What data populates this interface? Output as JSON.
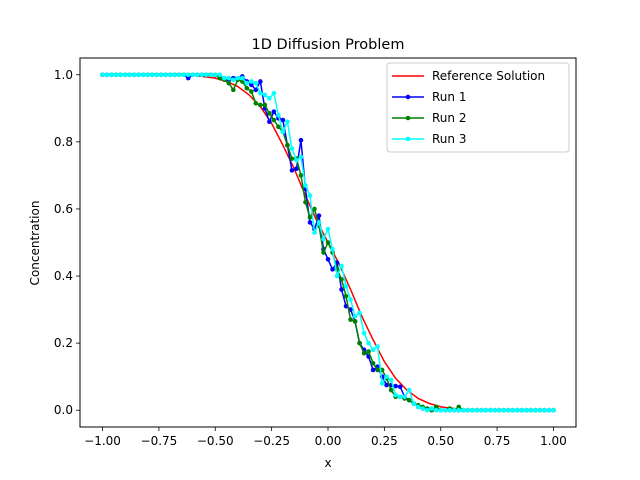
{
  "chart_data": {
    "type": "line",
    "title": "1D Diffusion Problem",
    "xlabel": "x",
    "ylabel": "Concentration",
    "xlim": [
      -1.1,
      1.1
    ],
    "ylim": [
      -0.05,
      1.05
    ],
    "xticks": [
      -1.0,
      -0.75,
      -0.5,
      -0.25,
      0.0,
      0.25,
      0.5,
      0.75,
      1.0
    ],
    "xtick_labels": [
      "−1.00",
      "−0.75",
      "−0.50",
      "−0.25",
      "0.00",
      "0.25",
      "0.50",
      "0.75",
      "1.00"
    ],
    "yticks": [
      0.0,
      0.2,
      0.4,
      0.6,
      0.8,
      1.0
    ],
    "ytick_labels": [
      "0.0",
      "0.2",
      "0.4",
      "0.6",
      "0.8",
      "1.0"
    ],
    "grid": false,
    "legend_position": "top-right",
    "reference_solution": {
      "name": "Reference Solution",
      "color": "#ff0000",
      "x": [
        -1.0,
        -0.9,
        -0.8,
        -0.7,
        -0.6,
        -0.5,
        -0.45,
        -0.4,
        -0.35,
        -0.3,
        -0.25,
        -0.2,
        -0.15,
        -0.1,
        -0.05,
        0.0,
        0.05,
        0.1,
        0.15,
        0.2,
        0.25,
        0.3,
        0.35,
        0.4,
        0.45,
        0.5,
        0.6,
        0.7,
        0.8,
        0.9,
        1.0
      ],
      "y": [
        1.0,
        1.0,
        1.0,
        1.0,
        0.999,
        0.99,
        0.98,
        0.965,
        0.94,
        0.905,
        0.855,
        0.79,
        0.72,
        0.64,
        0.565,
        0.5,
        0.435,
        0.36,
        0.28,
        0.21,
        0.145,
        0.095,
        0.06,
        0.035,
        0.02,
        0.01,
        0.002,
        0.0,
        0.0,
        0.0,
        0.0
      ]
    },
    "series": [
      {
        "name": "Run 1",
        "color": "#0000ff",
        "x": [
          -1.0,
          -0.98,
          -0.96,
          -0.94,
          -0.92,
          -0.9,
          -0.88,
          -0.86,
          -0.84,
          -0.82,
          -0.8,
          -0.78,
          -0.76,
          -0.74,
          -0.72,
          -0.7,
          -0.68,
          -0.66,
          -0.64,
          -0.62,
          -0.6,
          -0.58,
          -0.56,
          -0.54,
          -0.52,
          -0.5,
          -0.48,
          -0.46,
          -0.44,
          -0.42,
          -0.4,
          -0.38,
          -0.36,
          -0.34,
          -0.32,
          -0.3,
          -0.28,
          -0.26,
          -0.24,
          -0.22,
          -0.2,
          -0.18,
          -0.16,
          -0.14,
          -0.12,
          -0.1,
          -0.08,
          -0.06,
          -0.04,
          -0.02,
          0.0,
          0.02,
          0.04,
          0.06,
          0.08,
          0.1,
          0.12,
          0.14,
          0.16,
          0.18,
          0.2,
          0.22,
          0.24,
          0.26,
          0.28,
          0.3,
          0.32,
          0.34,
          0.36,
          0.38,
          0.4,
          0.42,
          0.44,
          0.46,
          0.48,
          0.5,
          0.52,
          0.54,
          0.56,
          0.58,
          0.6,
          0.62,
          0.64,
          0.66,
          0.68,
          0.7,
          0.72,
          0.74,
          0.76,
          0.78,
          0.8,
          0.82,
          0.84,
          0.86,
          0.88,
          0.9,
          0.92,
          0.94,
          0.96,
          0.98,
          1.0
        ],
        "y": [
          1.0,
          1.0,
          1.0,
          1.0,
          1.0,
          1.0,
          1.0,
          1.0,
          1.0,
          1.0,
          1.0,
          1.0,
          1.0,
          1.0,
          1.0,
          1.0,
          1.0,
          1.0,
          1.0,
          0.99,
          1.0,
          1.0,
          1.0,
          1.0,
          1.0,
          0.999,
          0.995,
          0.99,
          0.985,
          0.99,
          0.99,
          0.995,
          0.98,
          0.97,
          0.955,
          0.98,
          0.9,
          0.86,
          0.89,
          0.87,
          0.865,
          0.79,
          0.715,
          0.72,
          0.805,
          0.66,
          0.56,
          0.54,
          0.58,
          0.48,
          0.45,
          0.42,
          0.44,
          0.36,
          0.31,
          0.3,
          0.265,
          0.2,
          0.18,
          0.16,
          0.12,
          0.13,
          0.1,
          0.075,
          0.075,
          0.072,
          0.07,
          0.04,
          0.03,
          0.02,
          0.01,
          0.005,
          0.004,
          0.002,
          0.001,
          0.0,
          0.0,
          0.0,
          0.0,
          0.0,
          0.0,
          0.0,
          0.0,
          0.0,
          0.0,
          0.0,
          0.0,
          0.0,
          0.0,
          0.0,
          0.0,
          0.0,
          0.0,
          0.0,
          0.0,
          0.0,
          0.0,
          0.0,
          0.0,
          0.0,
          0.0
        ]
      },
      {
        "name": "Run 2",
        "color": "#008000",
        "x": [
          -1.0,
          -0.98,
          -0.96,
          -0.94,
          -0.92,
          -0.9,
          -0.88,
          -0.86,
          -0.84,
          -0.82,
          -0.8,
          -0.78,
          -0.76,
          -0.74,
          -0.72,
          -0.7,
          -0.68,
          -0.66,
          -0.64,
          -0.62,
          -0.6,
          -0.58,
          -0.56,
          -0.54,
          -0.52,
          -0.5,
          -0.48,
          -0.46,
          -0.44,
          -0.42,
          -0.4,
          -0.38,
          -0.36,
          -0.34,
          -0.32,
          -0.3,
          -0.28,
          -0.26,
          -0.24,
          -0.22,
          -0.2,
          -0.18,
          -0.16,
          -0.14,
          -0.12,
          -0.1,
          -0.08,
          -0.06,
          -0.04,
          -0.02,
          0.0,
          0.02,
          0.04,
          0.06,
          0.08,
          0.1,
          0.12,
          0.14,
          0.16,
          0.18,
          0.2,
          0.22,
          0.24,
          0.26,
          0.28,
          0.3,
          0.32,
          0.34,
          0.36,
          0.38,
          0.4,
          0.42,
          0.44,
          0.46,
          0.48,
          0.5,
          0.52,
          0.54,
          0.56,
          0.58,
          0.6,
          0.62,
          0.64,
          0.66,
          0.68,
          0.7,
          0.72,
          0.74,
          0.76,
          0.78,
          0.8,
          0.82,
          0.84,
          0.86,
          0.88,
          0.9,
          0.92,
          0.94,
          0.96,
          0.98,
          1.0
        ],
        "y": [
          1.0,
          1.0,
          1.0,
          1.0,
          1.0,
          1.0,
          1.0,
          1.0,
          1.0,
          1.0,
          1.0,
          1.0,
          1.0,
          1.0,
          1.0,
          1.0,
          1.0,
          1.0,
          1.0,
          1.0,
          1.0,
          1.0,
          1.0,
          1.0,
          1.0,
          1.0,
          0.99,
          0.985,
          0.975,
          0.955,
          0.985,
          0.98,
          0.96,
          0.95,
          0.915,
          0.91,
          0.91,
          0.885,
          0.865,
          0.845,
          0.83,
          0.79,
          0.75,
          0.75,
          0.7,
          0.62,
          0.575,
          0.6,
          0.55,
          0.47,
          0.5,
          0.47,
          0.42,
          0.39,
          0.34,
          0.27,
          0.265,
          0.2,
          0.17,
          0.175,
          0.14,
          0.12,
          0.12,
          0.095,
          0.06,
          0.04,
          0.04,
          0.035,
          0.03,
          0.02,
          0.015,
          0.01,
          0.005,
          0.0,
          0.01,
          0.0,
          0.0,
          0.005,
          0.0,
          0.01,
          0.0,
          0.0,
          0.0,
          0.0,
          0.0,
          0.0,
          0.0,
          0.0,
          0.0,
          0.0,
          0.0,
          0.0,
          0.0,
          0.0,
          0.0,
          0.0,
          0.0,
          0.0,
          0.0,
          0.0,
          0.0
        ]
      },
      {
        "name": "Run 3",
        "color": "#00ffff",
        "x": [
          -1.0,
          -0.98,
          -0.96,
          -0.94,
          -0.92,
          -0.9,
          -0.88,
          -0.86,
          -0.84,
          -0.82,
          -0.8,
          -0.78,
          -0.76,
          -0.74,
          -0.72,
          -0.7,
          -0.68,
          -0.66,
          -0.64,
          -0.62,
          -0.6,
          -0.58,
          -0.56,
          -0.54,
          -0.52,
          -0.5,
          -0.48,
          -0.46,
          -0.44,
          -0.42,
          -0.4,
          -0.38,
          -0.36,
          -0.34,
          -0.32,
          -0.3,
          -0.28,
          -0.26,
          -0.24,
          -0.22,
          -0.2,
          -0.18,
          -0.16,
          -0.14,
          -0.12,
          -0.1,
          -0.08,
          -0.06,
          -0.04,
          -0.02,
          0.0,
          0.02,
          0.04,
          0.06,
          0.08,
          0.1,
          0.12,
          0.14,
          0.16,
          0.18,
          0.2,
          0.22,
          0.24,
          0.26,
          0.28,
          0.3,
          0.32,
          0.34,
          0.36,
          0.38,
          0.4,
          0.42,
          0.44,
          0.46,
          0.48,
          0.5,
          0.52,
          0.54,
          0.56,
          0.58,
          0.6,
          0.62,
          0.64,
          0.66,
          0.68,
          0.7,
          0.72,
          0.74,
          0.76,
          0.78,
          0.8,
          0.82,
          0.84,
          0.86,
          0.88,
          0.9,
          0.92,
          0.94,
          0.96,
          0.98,
          1.0
        ],
        "y": [
          1.0,
          1.0,
          1.0,
          1.0,
          1.0,
          1.0,
          1.0,
          1.0,
          1.0,
          1.0,
          1.0,
          1.0,
          1.0,
          1.0,
          1.0,
          1.0,
          1.0,
          1.0,
          1.0,
          1.0,
          1.0,
          1.0,
          1.0,
          1.0,
          1.0,
          1.0,
          1.0,
          0.99,
          0.99,
          0.985,
          0.99,
          0.99,
          0.975,
          0.98,
          0.975,
          0.945,
          0.94,
          0.93,
          0.945,
          0.88,
          0.83,
          0.86,
          0.78,
          0.745,
          0.755,
          0.67,
          0.64,
          0.53,
          0.56,
          0.51,
          0.54,
          0.48,
          0.4,
          0.43,
          0.37,
          0.33,
          0.28,
          0.29,
          0.23,
          0.2,
          0.18,
          0.19,
          0.08,
          0.1,
          0.09,
          0.045,
          0.04,
          0.04,
          0.06,
          0.02,
          0.01,
          0.005,
          0.0,
          0.005,
          0.0,
          0.0,
          0.0,
          0.0,
          0.0,
          0.0,
          0.0,
          0.0,
          0.0,
          0.0,
          0.0,
          0.0,
          0.0,
          0.0,
          0.0,
          0.0,
          0.0,
          0.0,
          0.0,
          0.0,
          0.0,
          0.0,
          0.0,
          0.0,
          0.0,
          0.0,
          0.0
        ]
      }
    ]
  }
}
